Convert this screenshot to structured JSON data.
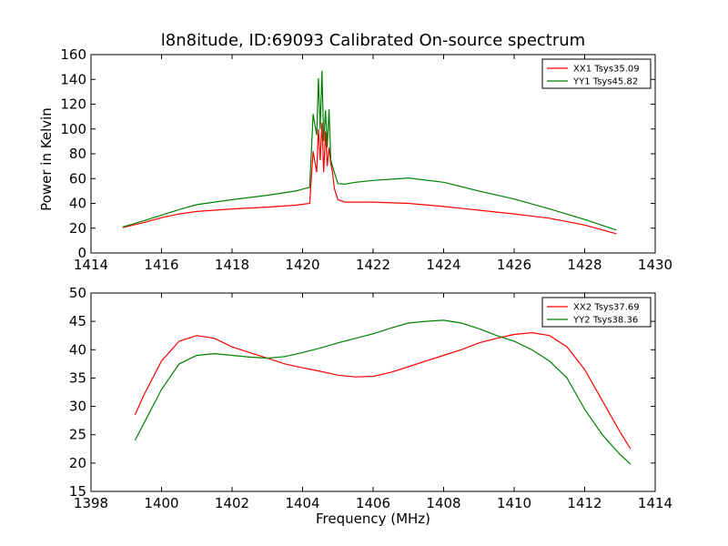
{
  "chart_data": [
    {
      "type": "line",
      "title": "l8n8itude, ID:69093 Calibrated On-source spectrum",
      "xlabel": "",
      "ylabel": "Power in Kelvin",
      "xlim": [
        1414,
        1430
      ],
      "ylim": [
        0,
        160
      ],
      "xticks": [
        "1414",
        "1416",
        "1418",
        "1420",
        "1422",
        "1424",
        "1426",
        "1428",
        "1430"
      ],
      "yticks": [
        "0",
        "20",
        "40",
        "60",
        "80",
        "100",
        "120",
        "140",
        "160"
      ],
      "grid": false,
      "legend": "top-right",
      "series": [
        {
          "name": "XX1 Tsys35.09",
          "color": "#ff0000",
          "x": [
            1414.9,
            1415.5,
            1416.0,
            1416.5,
            1417.0,
            1418.0,
            1419.0,
            1419.8,
            1420.2,
            1420.3,
            1420.4,
            1420.45,
            1420.5,
            1420.55,
            1420.6,
            1420.65,
            1420.7,
            1420.75,
            1420.8,
            1420.85,
            1420.9,
            1421.0,
            1421.2,
            1421.5,
            1422.0,
            1423.0,
            1424.0,
            1425.0,
            1426.0,
            1427.0,
            1428.0,
            1428.9
          ],
          "values": [
            20.5,
            24.5,
            28.5,
            31.5,
            33.5,
            35.5,
            37.0,
            38.5,
            40.0,
            82.0,
            65.0,
            100.0,
            75.0,
            105.0,
            65.0,
            98.0,
            70.0,
            85.0,
            72.0,
            65.0,
            52.0,
            43.0,
            41.0,
            41.0,
            41.0,
            40.0,
            37.5,
            34.5,
            31.5,
            28.0,
            22.5,
            15.5
          ]
        },
        {
          "name": "YY1 Tsys45.82",
          "color": "#008000",
          "x": [
            1414.9,
            1415.5,
            1416.0,
            1416.5,
            1417.0,
            1418.0,
            1419.0,
            1419.8,
            1420.2,
            1420.3,
            1420.4,
            1420.45,
            1420.5,
            1420.55,
            1420.6,
            1420.65,
            1420.7,
            1420.75,
            1420.8,
            1420.85,
            1420.9,
            1421.0,
            1421.2,
            1421.5,
            1422.0,
            1423.0,
            1424.0,
            1425.0,
            1426.0,
            1427.0,
            1428.0,
            1428.9
          ],
          "values": [
            21.0,
            26.0,
            30.5,
            35.0,
            39.0,
            43.0,
            46.5,
            50.0,
            53.0,
            112.0,
            95.0,
            141.0,
            100.0,
            147.0,
            90.0,
            115.0,
            85.0,
            116.0,
            75.0,
            70.0,
            65.0,
            56.0,
            55.5,
            57.0,
            58.5,
            60.5,
            57.0,
            50.0,
            43.5,
            35.5,
            27.0,
            18.5
          ]
        }
      ]
    },
    {
      "type": "line",
      "title": "",
      "xlabel": "Frequency (MHz)",
      "ylabel": "",
      "xlim": [
        1398,
        1414
      ],
      "ylim": [
        15,
        50
      ],
      "xticks": [
        "1398",
        "1400",
        "1402",
        "1404",
        "1406",
        "1408",
        "1410",
        "1412",
        "1414"
      ],
      "yticks": [
        "15",
        "20",
        "25",
        "30",
        "35",
        "40",
        "45",
        "50"
      ],
      "grid": false,
      "legend": "top-right",
      "series": [
        {
          "name": "XX2 Tsys37.69",
          "color": "#ff0000",
          "x": [
            1399.25,
            1399.5,
            1400.0,
            1400.5,
            1401.0,
            1401.5,
            1402.0,
            1402.5,
            1403.0,
            1403.5,
            1404.0,
            1404.5,
            1405.0,
            1405.5,
            1406.0,
            1406.5,
            1407.0,
            1407.5,
            1408.0,
            1408.5,
            1409.0,
            1409.5,
            1410.0,
            1410.5,
            1411.0,
            1411.5,
            1412.0,
            1412.5,
            1413.0,
            1413.3
          ],
          "values": [
            28.5,
            32.0,
            38.0,
            41.5,
            42.5,
            42.0,
            40.5,
            39.5,
            38.5,
            37.5,
            36.8,
            36.2,
            35.5,
            35.2,
            35.3,
            36.0,
            37.0,
            38.0,
            39.0,
            40.0,
            41.2,
            42.0,
            42.7,
            43.0,
            42.5,
            40.5,
            36.5,
            31.0,
            25.5,
            22.5
          ]
        },
        {
          "name": "YY2 Tsys38.36",
          "color": "#008000",
          "x": [
            1399.25,
            1399.5,
            1400.0,
            1400.5,
            1401.0,
            1401.5,
            1402.0,
            1402.5,
            1403.0,
            1403.5,
            1404.0,
            1404.5,
            1405.0,
            1405.5,
            1406.0,
            1406.5,
            1407.0,
            1407.5,
            1408.0,
            1408.5,
            1409.0,
            1409.5,
            1410.0,
            1410.5,
            1411.0,
            1411.5,
            1412.0,
            1412.5,
            1413.0,
            1413.3
          ],
          "values": [
            24.0,
            27.0,
            33.0,
            37.5,
            39.0,
            39.3,
            39.0,
            38.7,
            38.5,
            38.8,
            39.5,
            40.3,
            41.2,
            42.0,
            42.8,
            43.8,
            44.7,
            45.0,
            45.2,
            44.7,
            43.7,
            42.5,
            41.5,
            40.0,
            38.0,
            35.0,
            29.5,
            25.0,
            21.5,
            19.8
          ]
        }
      ]
    }
  ]
}
